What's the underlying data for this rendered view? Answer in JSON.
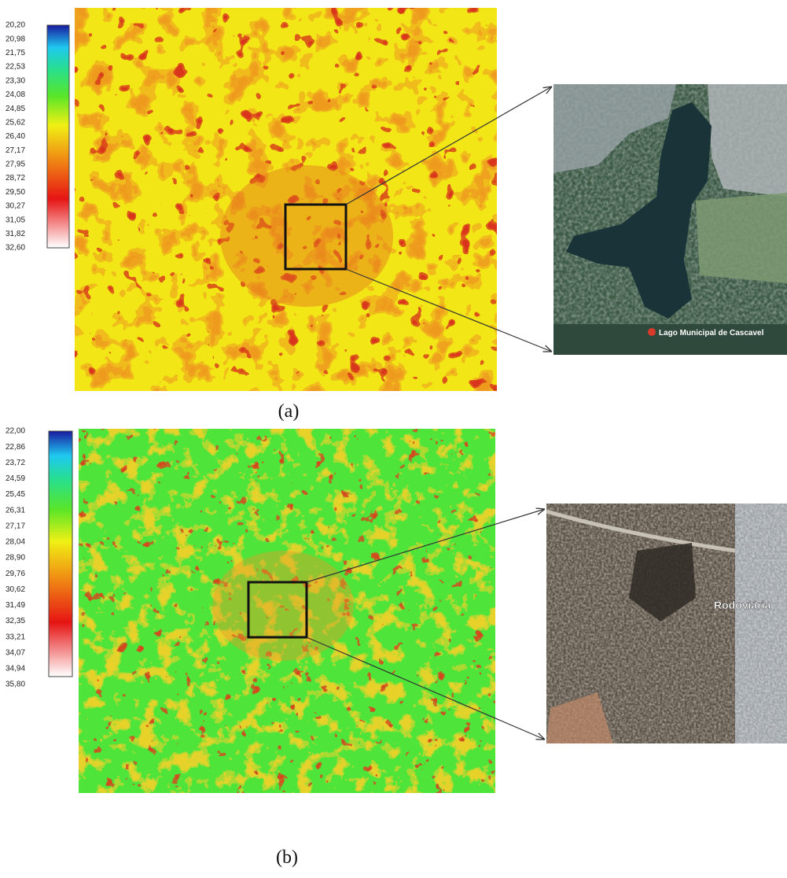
{
  "panels": [
    {
      "caption": "(a)",
      "legend": [
        "20,20",
        "20,98",
        "21,75",
        "22,53",
        "23,30",
        "24,08",
        "24,85",
        "25,62",
        "26,40",
        "27,17",
        "27,95",
        "28,72",
        "29,50",
        "30,27",
        "31,05",
        "31,82",
        "32,60"
      ],
      "inset_label": "Lago Municipal de Cascavel"
    },
    {
      "caption": "(b)",
      "legend": [
        "22,00",
        "22,86",
        "23,72",
        "24,59",
        "25,45",
        "26,31",
        "27,17",
        "28,04",
        "28,90",
        "29,76",
        "30,62",
        "31,49",
        "32,35",
        "33,21",
        "34,07",
        "34,94",
        "35,80"
      ],
      "inset_label": "Rodoviária"
    }
  ]
}
